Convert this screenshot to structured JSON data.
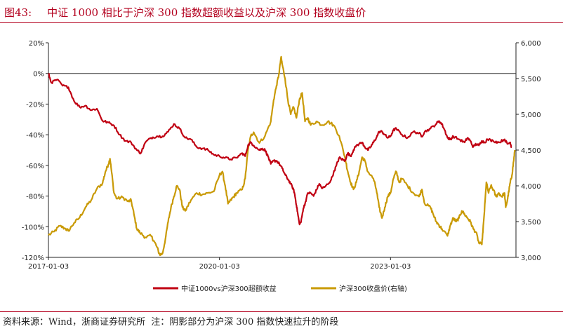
{
  "figure": {
    "number": "图43:",
    "title": "中证 1000 相比于沪深 300 指数超额收益以及沪深 300 指数收盘价"
  },
  "footer": {
    "source": "资料来源：Wind，浙商证券研究所",
    "note": "注：阴影部分为沪深 300 指数快速拉升的阶段"
  },
  "chart_data": {
    "type": "line",
    "title": "中证 1000 相比于沪深 300 指数超额收益以及沪深 300 指数收盘价",
    "x_tick_labels": [
      "2017-01-03",
      "2020-01-03",
      "2023-01-03"
    ],
    "left_axis": {
      "ylim": [
        -120,
        20
      ],
      "ticks": [
        "20%",
        "0%",
        "-20%",
        "-40%",
        "-60%",
        "-80%",
        "-100%",
        "-120%"
      ]
    },
    "right_axis": {
      "ylim": [
        3000,
        6000
      ],
      "ticks": [
        "6,000",
        "5,500",
        "5,000",
        "4,500",
        "4,000",
        "3,500",
        "3,000"
      ]
    },
    "series": [
      {
        "name": "中证1000vs沪深300超额收益",
        "axis": "left",
        "color": "#c00012",
        "unit": "%",
        "points": [
          [
            2017.0,
            0
          ],
          [
            2017.05,
            -6
          ],
          [
            2017.15,
            -4
          ],
          [
            2017.25,
            -8
          ],
          [
            2017.35,
            -9
          ],
          [
            2017.45,
            -18
          ],
          [
            2017.55,
            -22
          ],
          [
            2017.65,
            -21
          ],
          [
            2017.75,
            -24
          ],
          [
            2017.85,
            -23
          ],
          [
            2017.95,
            -31
          ],
          [
            2018.05,
            -32
          ],
          [
            2018.15,
            -34
          ],
          [
            2018.25,
            -40
          ],
          [
            2018.35,
            -44
          ],
          [
            2018.45,
            -45
          ],
          [
            2018.55,
            -50
          ],
          [
            2018.62,
            -52
          ],
          [
            2018.7,
            -45
          ],
          [
            2018.8,
            -42
          ],
          [
            2018.9,
            -41
          ],
          [
            2019.0,
            -41
          ],
          [
            2019.1,
            -38
          ],
          [
            2019.2,
            -33
          ],
          [
            2019.3,
            -36
          ],
          [
            2019.4,
            -42
          ],
          [
            2019.5,
            -43
          ],
          [
            2019.6,
            -48
          ],
          [
            2019.7,
            -49
          ],
          [
            2019.8,
            -50
          ],
          [
            2019.9,
            -53
          ],
          [
            2020.0,
            -54
          ],
          [
            2020.1,
            -55
          ],
          [
            2020.2,
            -56
          ],
          [
            2020.3,
            -55
          ],
          [
            2020.4,
            -52
          ],
          [
            2020.45,
            -54
          ],
          [
            2020.5,
            -47
          ],
          [
            2020.55,
            -45
          ],
          [
            2020.6,
            -47
          ],
          [
            2020.7,
            -50
          ],
          [
            2020.75,
            -49
          ],
          [
            2020.8,
            -50
          ],
          [
            2020.85,
            -54
          ],
          [
            2020.9,
            -59
          ],
          [
            2020.95,
            -57
          ],
          [
            2021.0,
            -57
          ],
          [
            2021.05,
            -59
          ],
          [
            2021.1,
            -62
          ],
          [
            2021.15,
            -66
          ],
          [
            2021.2,
            -69
          ],
          [
            2021.25,
            -72
          ],
          [
            2021.3,
            -76
          ],
          [
            2021.32,
            -79
          ],
          [
            2021.35,
            -86
          ],
          [
            2021.38,
            -93
          ],
          [
            2021.4,
            -98
          ],
          [
            2021.43,
            -97
          ],
          [
            2021.47,
            -88
          ],
          [
            2021.5,
            -85
          ],
          [
            2021.55,
            -78
          ],
          [
            2021.6,
            -78
          ],
          [
            2021.65,
            -80
          ],
          [
            2021.7,
            -76
          ],
          [
            2021.75,
            -72
          ],
          [
            2021.8,
            -75
          ],
          [
            2021.85,
            -74
          ],
          [
            2021.95,
            -70
          ],
          [
            2022.0,
            -65
          ],
          [
            2022.05,
            -60
          ],
          [
            2022.1,
            -55
          ],
          [
            2022.15,
            -56
          ],
          [
            2022.2,
            -57
          ],
          [
            2022.25,
            -52
          ],
          [
            2022.3,
            -54
          ],
          [
            2022.35,
            -50
          ],
          [
            2022.4,
            -47
          ],
          [
            2022.5,
            -45
          ],
          [
            2022.55,
            -48
          ],
          [
            2022.6,
            -50
          ],
          [
            2022.65,
            -48
          ],
          [
            2022.7,
            -45
          ],
          [
            2022.75,
            -42
          ],
          [
            2022.8,
            -38
          ],
          [
            2022.85,
            -38
          ],
          [
            2022.9,
            -40
          ],
          [
            2022.95,
            -42
          ],
          [
            2023.0,
            -41
          ],
          [
            2023.05,
            -37
          ],
          [
            2023.1,
            -36
          ],
          [
            2023.2,
            -40
          ],
          [
            2023.3,
            -42
          ],
          [
            2023.4,
            -38
          ],
          [
            2023.5,
            -39
          ],
          [
            2023.55,
            -41
          ],
          [
            2023.6,
            -38
          ],
          [
            2023.7,
            -36
          ],
          [
            2023.8,
            -33
          ],
          [
            2023.85,
            -31
          ],
          [
            2023.9,
            -33
          ],
          [
            2023.95,
            -37
          ],
          [
            2024.0,
            -42
          ],
          [
            2024.05,
            -43
          ],
          [
            2024.1,
            -41
          ],
          [
            2024.2,
            -43
          ],
          [
            2024.3,
            -45
          ],
          [
            2024.35,
            -42
          ],
          [
            2024.4,
            -44
          ],
          [
            2024.45,
            -48
          ],
          [
            2024.5,
            -46
          ],
          [
            2024.55,
            -47
          ],
          [
            2024.6,
            -44
          ],
          [
            2024.65,
            -45
          ],
          [
            2024.7,
            -43
          ],
          [
            2024.8,
            -44
          ],
          [
            2024.9,
            -45
          ],
          [
            2025.0,
            -43
          ],
          [
            2025.05,
            -46
          ],
          [
            2025.1,
            -45
          ],
          [
            2025.12,
            -48
          ]
        ]
      },
      {
        "name": "沪深300收盘价(右轴)",
        "axis": "right",
        "color": "#c99a06",
        "unit": "",
        "points": [
          [
            2017.0,
            3310
          ],
          [
            2017.1,
            3360
          ],
          [
            2017.2,
            3440
          ],
          [
            2017.3,
            3400
          ],
          [
            2017.35,
            3370
          ],
          [
            2017.45,
            3480
          ],
          [
            2017.55,
            3560
          ],
          [
            2017.65,
            3700
          ],
          [
            2017.75,
            3800
          ],
          [
            2017.85,
            3960
          ],
          [
            2017.95,
            4040
          ],
          [
            2018.0,
            4200
          ],
          [
            2018.05,
            4300
          ],
          [
            2018.08,
            4380
          ],
          [
            2018.1,
            4250
          ],
          [
            2018.15,
            3900
          ],
          [
            2018.2,
            3820
          ],
          [
            2018.3,
            3840
          ],
          [
            2018.4,
            3780
          ],
          [
            2018.45,
            3800
          ],
          [
            2018.5,
            3600
          ],
          [
            2018.55,
            3400
          ],
          [
            2018.6,
            3350
          ],
          [
            2018.7,
            3280
          ],
          [
            2018.8,
            3300
          ],
          [
            2018.85,
            3230
          ],
          [
            2018.9,
            3150
          ],
          [
            2018.95,
            3040
          ],
          [
            2019.0,
            3050
          ],
          [
            2019.05,
            3250
          ],
          [
            2019.1,
            3500
          ],
          [
            2019.15,
            3700
          ],
          [
            2019.2,
            3850
          ],
          [
            2019.25,
            4000
          ],
          [
            2019.3,
            3950
          ],
          [
            2019.35,
            3700
          ],
          [
            2019.4,
            3650
          ],
          [
            2019.5,
            3800
          ],
          [
            2019.6,
            3900
          ],
          [
            2019.7,
            3880
          ],
          [
            2019.8,
            3900
          ],
          [
            2019.9,
            3920
          ],
          [
            2020.0,
            4150
          ],
          [
            2020.05,
            4200
          ],
          [
            2020.1,
            4000
          ],
          [
            2020.15,
            3750
          ],
          [
            2020.2,
            3800
          ],
          [
            2020.25,
            3850
          ],
          [
            2020.3,
            3900
          ],
          [
            2020.4,
            3950
          ],
          [
            2020.45,
            4100
          ],
          [
            2020.5,
            4500
          ],
          [
            2020.55,
            4700
          ],
          [
            2020.6,
            4750
          ],
          [
            2020.7,
            4600
          ],
          [
            2020.8,
            4700
          ],
          [
            2020.9,
            4900
          ],
          [
            2020.95,
            5200
          ],
          [
            2021.0,
            5400
          ],
          [
            2021.04,
            5550
          ],
          [
            2021.08,
            5800
          ],
          [
            2021.1,
            5700
          ],
          [
            2021.15,
            5500
          ],
          [
            2021.2,
            5200
          ],
          [
            2021.25,
            5000
          ],
          [
            2021.3,
            5100
          ],
          [
            2021.35,
            4950
          ],
          [
            2021.4,
            5200
          ],
          [
            2021.45,
            5300
          ],
          [
            2021.5,
            4900
          ],
          [
            2021.55,
            4950
          ],
          [
            2021.6,
            4850
          ],
          [
            2021.7,
            4900
          ],
          [
            2021.8,
            4850
          ],
          [
            2021.9,
            4900
          ],
          [
            2022.0,
            4850
          ],
          [
            2022.1,
            4700
          ],
          [
            2022.2,
            4400
          ],
          [
            2022.25,
            4200
          ],
          [
            2022.3,
            4050
          ],
          [
            2022.35,
            3950
          ],
          [
            2022.4,
            4050
          ],
          [
            2022.45,
            4200
          ],
          [
            2022.5,
            4400
          ],
          [
            2022.55,
            4350
          ],
          [
            2022.6,
            4200
          ],
          [
            2022.7,
            4100
          ],
          [
            2022.75,
            3950
          ],
          [
            2022.8,
            3700
          ],
          [
            2022.85,
            3550
          ],
          [
            2022.9,
            3700
          ],
          [
            2022.95,
            3850
          ],
          [
            2023.0,
            3900
          ],
          [
            2023.05,
            4100
          ],
          [
            2023.1,
            4200
          ],
          [
            2023.15,
            4050
          ],
          [
            2023.2,
            4100
          ],
          [
            2023.3,
            4000
          ],
          [
            2023.4,
            3900
          ],
          [
            2023.5,
            3850
          ],
          [
            2023.55,
            3950
          ],
          [
            2023.6,
            3750
          ],
          [
            2023.7,
            3700
          ],
          [
            2023.75,
            3600
          ],
          [
            2023.8,
            3500
          ],
          [
            2023.85,
            3450
          ],
          [
            2023.9,
            3400
          ],
          [
            2024.0,
            3300
          ],
          [
            2024.05,
            3450
          ],
          [
            2024.1,
            3550
          ],
          [
            2024.15,
            3500
          ],
          [
            2024.2,
            3550
          ],
          [
            2024.25,
            3650
          ],
          [
            2024.3,
            3600
          ],
          [
            2024.35,
            3550
          ],
          [
            2024.4,
            3500
          ],
          [
            2024.45,
            3400
          ],
          [
            2024.5,
            3350
          ],
          [
            2024.55,
            3200
          ],
          [
            2024.6,
            3180
          ],
          [
            2024.62,
            3350
          ],
          [
            2024.66,
            3800
          ],
          [
            2024.68,
            4050
          ],
          [
            2024.72,
            3900
          ],
          [
            2024.76,
            4000
          ],
          [
            2024.8,
            3950
          ],
          [
            2024.85,
            3850
          ],
          [
            2024.9,
            3900
          ],
          [
            2024.95,
            3850
          ],
          [
            2025.0,
            3900
          ],
          [
            2025.02,
            3700
          ],
          [
            2025.05,
            3800
          ],
          [
            2025.08,
            3950
          ],
          [
            2025.1,
            4050
          ],
          [
            2025.13,
            4150
          ],
          [
            2025.16,
            4350
          ],
          [
            2025.18,
            4500
          ]
        ]
      }
    ]
  }
}
